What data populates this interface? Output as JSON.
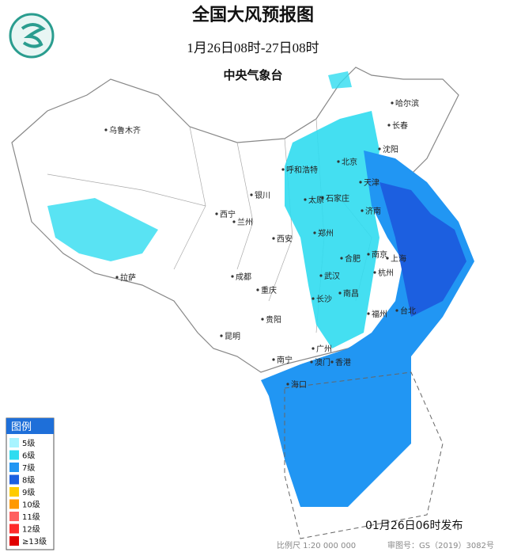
{
  "header": {
    "title": "全国大风预报图",
    "time_range": "1月26日08时-27日08时",
    "agency": "中央气象台"
  },
  "cities": [
    "乌鲁木齐",
    "哈尔滨",
    "长春",
    "沈阳",
    "北京",
    "呼和浩特",
    "天津",
    "银川",
    "石家庄",
    "太原",
    "济南",
    "西宁",
    "兰州",
    "西安",
    "郑州",
    "合肥",
    "南京",
    "上海",
    "成都",
    "武汉",
    "杭州",
    "重庆",
    "长沙",
    "南昌",
    "拉萨",
    "贵阳",
    "福州",
    "台北",
    "昆明",
    "南宁",
    "广州",
    "澳门",
    "香港",
    "海口"
  ],
  "legend": {
    "title": "图例",
    "levels": [
      {
        "label": "5级",
        "color": "#a8f4ff"
      },
      {
        "label": "6级",
        "color": "#30dcf0"
      },
      {
        "label": "7级",
        "color": "#2196f3"
      },
      {
        "label": "8级",
        "color": "#1c5fe0"
      },
      {
        "label": "9级",
        "color": "#ffcc00"
      },
      {
        "label": "10级",
        "color": "#ff9900"
      },
      {
        "label": "11级",
        "color": "#ff6060"
      },
      {
        "label": "12级",
        "color": "#ff2a2a"
      },
      {
        "label": "≥13级",
        "color": "#e00000"
      }
    ]
  },
  "footer": {
    "release": "01月26日06时发布",
    "scale": "比例尺 1:20 000 000",
    "approval": "审图号：GS（2019）3082号"
  }
}
